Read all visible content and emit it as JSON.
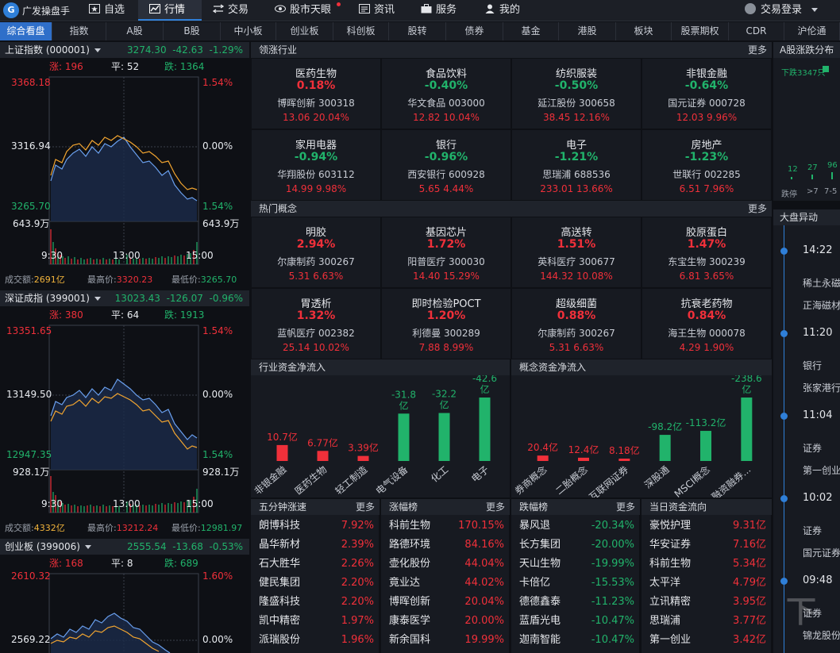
{
  "app": {
    "logo_text": "G",
    "name": "广发操盘手"
  },
  "nav": [
    {
      "label": "自选",
      "icon": "star-icon"
    },
    {
      "label": "行情",
      "icon": "chart-icon"
    },
    {
      "label": "交易",
      "icon": "trade-icon"
    },
    {
      "label": "股市天眼",
      "icon": "eye-icon"
    },
    {
      "label": "资讯",
      "icon": "news-icon"
    },
    {
      "label": "服务",
      "icon": "briefcase-icon"
    },
    {
      "label": "我的",
      "icon": "user-icon"
    }
  ],
  "login_label": "交易登录",
  "tabs": [
    "综合看盘",
    "指数",
    "A股",
    "B股",
    "中小板",
    "创业板",
    "科创板",
    "股转",
    "债券",
    "基金",
    "港股",
    "板块",
    "股票期权",
    "CDR",
    "沪伦通"
  ],
  "indices": [
    {
      "name": "上证指数 (000001)",
      "price": "3274.30",
      "chg": "-42.63",
      "pct": "-1.29%",
      "up_label": "涨: 196",
      "flat_label": "平: 52",
      "down_label": "跌: 1364",
      "y_top": "3368.18",
      "y_mid": "3316.94",
      "y_bot": "3265.70",
      "r_top": "1.54%",
      "r_mid": "0.00%",
      "r_bot": "1.54%",
      "vol_l": "643.9万",
      "vol_r": "643.9万",
      "t0": "9:30",
      "t1": "13:00",
      "t2": "15:00",
      "amt_label": "成交额:",
      "amt": "2691亿",
      "high_label": "最高价:",
      "high": "3320.23",
      "low_label": "最低价:",
      "low": "3265.70"
    },
    {
      "name": "深证成指 (399001)",
      "price": "13023.43",
      "chg": "-126.07",
      "pct": "-0.96%",
      "up_label": "涨: 380",
      "flat_label": "平: 64",
      "down_label": "跌: 1913",
      "y_top": "13351.65",
      "y_mid": "13149.50",
      "y_bot": "12947.35",
      "r_top": "1.54%",
      "r_mid": "0.00%",
      "r_bot": "1.54%",
      "vol_l": "928.1万",
      "vol_r": "928.1万",
      "t0": "9:30",
      "t1": "13:00",
      "t2": "15:00",
      "amt_label": "成交额:",
      "amt": "4332亿",
      "high_label": "最高价:",
      "high": "13212.24",
      "low_label": "最低价:",
      "low": "12981.97"
    },
    {
      "name": "创业板 (399006)",
      "price": "2555.54",
      "chg": "-13.68",
      "pct": "-0.53%",
      "up_label": "涨: 168",
      "flat_label": "平: 8",
      "down_label": "跌: 689",
      "y_top": "2610.32",
      "y_mid": "2569.22",
      "r_top": "1.60%",
      "r_mid": "0.00%"
    }
  ],
  "industry": {
    "title": "领涨行业",
    "more": "更多",
    "items": [
      {
        "name": "医药生物",
        "pct": "0.18%",
        "dir": "up",
        "stock": "博晖创新 300318",
        "q": "13.06 20.04%"
      },
      {
        "name": "食品饮料",
        "pct": "-0.40%",
        "dir": "down",
        "stock": "华文食品 003000",
        "q": "12.82 10.04%"
      },
      {
        "name": "纺织服装",
        "pct": "-0.50%",
        "dir": "down",
        "stock": "延江股份 300658",
        "q": "38.45 12.16%"
      },
      {
        "name": "非银金融",
        "pct": "-0.64%",
        "dir": "down",
        "stock": "国元证券 000728",
        "q": "12.03 9.96%"
      },
      {
        "name": "家用电器",
        "pct": "-0.94%",
        "dir": "down",
        "stock": "华翔股份 603112",
        "q": "14.99 9.98%"
      },
      {
        "name": "银行",
        "pct": "-0.96%",
        "dir": "down",
        "stock": "西安银行 600928",
        "q": "5.65 4.44%"
      },
      {
        "name": "电子",
        "pct": "-1.21%",
        "dir": "down",
        "stock": "思瑞浦 688536",
        "q": "233.01 13.66%"
      },
      {
        "name": "房地产",
        "pct": "-1.23%",
        "dir": "down",
        "stock": "世联行 002285",
        "q": "6.51 7.96%"
      }
    ]
  },
  "concept": {
    "title": "热门概念",
    "more": "更多",
    "items": [
      {
        "name": "明胶",
        "pct": "2.94%",
        "dir": "up",
        "stock": "尔康制药 300267",
        "q": "5.31 6.63%"
      },
      {
        "name": "基因芯片",
        "pct": "1.72%",
        "dir": "up",
        "stock": "阳普医疗 300030",
        "q": "14.40 15.29%"
      },
      {
        "name": "高送转",
        "pct": "1.51%",
        "dir": "up",
        "stock": "英科医疗 300677",
        "q": "144.32 10.08%"
      },
      {
        "name": "胶原蛋白",
        "pct": "1.47%",
        "dir": "up",
        "stock": "东宝生物 300239",
        "q": "6.81 3.65%"
      },
      {
        "name": "胃透析",
        "pct": "1.32%",
        "dir": "up",
        "stock": "蓝帆医疗 002382",
        "q": "25.14 10.02%"
      },
      {
        "name": "即时检验POCT",
        "pct": "1.20%",
        "dir": "up",
        "stock": "利德曼 300289",
        "q": "7.88 8.99%"
      },
      {
        "name": "超级细菌",
        "pct": "0.88%",
        "dir": "up",
        "stock": "尔康制药 300267",
        "q": "5.31 6.63%"
      },
      {
        "name": "抗衰老药物",
        "pct": "0.84%",
        "dir": "up",
        "stock": "海王生物 000078",
        "q": "4.29 1.90%"
      }
    ]
  },
  "chart_data": [
    {
      "type": "bar",
      "title": "行业资金净流入",
      "unit": "亿",
      "categories": [
        "非银金融",
        "医药生物",
        "轻工制造",
        "电气设备",
        "化工",
        "电子"
      ],
      "values": [
        10.7,
        6.77,
        3.39,
        -31.8,
        -32.2,
        -42.6
      ],
      "labels": [
        "10.7亿",
        "6.77亿",
        "3.39亿",
        "-31.8亿",
        "-32.2亿",
        "-42.6亿"
      ]
    },
    {
      "type": "bar",
      "title": "概念资金净流入",
      "unit": "亿",
      "categories": [
        "券商概念",
        "二胎概念",
        "互联网证券",
        "深股通",
        "MSCI概念",
        "融资融券..."
      ],
      "values": [
        20.4,
        12.4,
        8.18,
        -98.2,
        -113.2,
        -238.6
      ],
      "labels": [
        "20.4亿",
        "12.4亿",
        "8.18亿",
        "-98.2亿",
        "-113.2亿",
        "-238.6亿"
      ]
    }
  ],
  "lists": [
    {
      "title": "五分钟涨速",
      "more": "更多",
      "rows": [
        {
          "name": "朗博科技",
          "val": "7.92%",
          "dir": "up"
        },
        {
          "name": "晶华新材",
          "val": "2.39%",
          "dir": "up"
        },
        {
          "name": "石大胜华",
          "val": "2.26%",
          "dir": "up"
        },
        {
          "name": "健民集团",
          "val": "2.20%",
          "dir": "up"
        },
        {
          "name": "隆盛科技",
          "val": "2.20%",
          "dir": "up"
        },
        {
          "name": "凯中精密",
          "val": "1.97%",
          "dir": "up"
        },
        {
          "name": "派瑞股份",
          "val": "1.96%",
          "dir": "up"
        }
      ]
    },
    {
      "title": "涨幅榜",
      "more": "更多",
      "rows": [
        {
          "name": "科前生物",
          "val": "170.15%",
          "dir": "up"
        },
        {
          "name": "路德环境",
          "val": "84.16%",
          "dir": "up"
        },
        {
          "name": "壶化股份",
          "val": "44.04%",
          "dir": "up"
        },
        {
          "name": "竟业达",
          "val": "44.02%",
          "dir": "up"
        },
        {
          "name": "博晖创新",
          "val": "20.04%",
          "dir": "up"
        },
        {
          "name": "康泰医学",
          "val": "20.00%",
          "dir": "up"
        },
        {
          "name": "新余国科",
          "val": "19.99%",
          "dir": "up"
        }
      ]
    },
    {
      "title": "跌幅榜",
      "more": "更多",
      "rows": [
        {
          "name": "暴风退",
          "val": "-20.34%",
          "dir": "down"
        },
        {
          "name": "长方集团",
          "val": "-20.00%",
          "dir": "down"
        },
        {
          "name": "天山生物",
          "val": "-19.99%",
          "dir": "down"
        },
        {
          "name": "卡倍亿",
          "val": "-15.53%",
          "dir": "down"
        },
        {
          "name": "德德鑫泰",
          "val": "-11.23%",
          "dir": "down"
        },
        {
          "name": "蓝盾光电",
          "val": "-10.47%",
          "dir": "down"
        },
        {
          "name": "迦南智能",
          "val": "-10.47%",
          "dir": "down"
        }
      ]
    },
    {
      "title": "当日资金流向",
      "more": "",
      "rows": [
        {
          "name": "豪悦护理",
          "val": "9.31亿",
          "dir": "up"
        },
        {
          "name": "华安证券",
          "val": "7.16亿",
          "dir": "up"
        },
        {
          "name": "科前生物",
          "val": "5.34亿",
          "dir": "up"
        },
        {
          "name": "太平洋",
          "val": "4.79亿",
          "dir": "up"
        },
        {
          "name": "立讯精密",
          "val": "3.95亿",
          "dir": "up"
        },
        {
          "name": "思瑞浦",
          "val": "3.77亿",
          "dir": "up"
        },
        {
          "name": "第一创业",
          "val": "3.42亿",
          "dir": "up"
        }
      ]
    }
  ],
  "right": {
    "dist_title": "A股涨跌分布",
    "down_count": "下跌3347只",
    "bars": [
      "12",
      "27",
      "96"
    ],
    "bar_labels": [
      "跌停",
      ">7",
      "7-5"
    ],
    "abn_title": "大盘异动",
    "events": [
      {
        "time": "14:22",
        "a": "稀土永磁",
        "b": "正海磁材"
      },
      {
        "time": "11:20",
        "a": "银行",
        "b": "张家港行"
      },
      {
        "time": "11:04",
        "a": "证券",
        "b": "第一创业"
      },
      {
        "time": "10:02",
        "a": "证券",
        "b": "国元证券"
      },
      {
        "time": "09:48",
        "a": "证券",
        "b": "锦龙股份"
      }
    ]
  },
  "colors": {
    "up": "#f0303a",
    "down": "#21b36b",
    "accent": "#2f7fd8",
    "line_white": "#6aa0ef",
    "line_yellow": "#f2a530"
  }
}
